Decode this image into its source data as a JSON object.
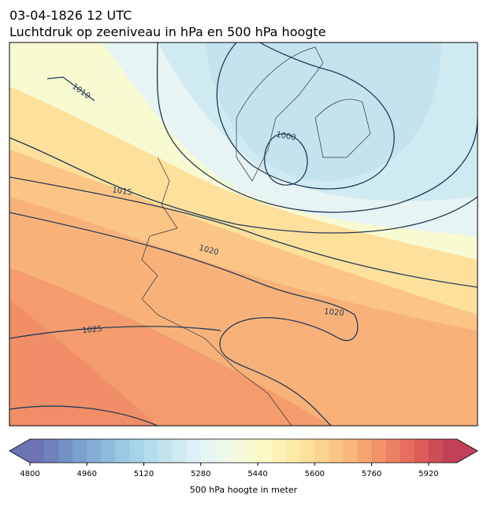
{
  "title": "03-04-1826 12 UTC",
  "subtitle": "Luchtdruk op zeeniveau in hPa en 500 hPa hoogte",
  "isobar_labels": [
    1010,
    1015,
    1020,
    1000,
    1020,
    1025
  ],
  "colorbar": {
    "label": "500 hPa hoogte in meter",
    "range": [
      4800,
      6000
    ],
    "ticks": [
      4800,
      4960,
      5120,
      5280,
      5440,
      5600,
      5760,
      5920
    ],
    "colors": [
      "#6c74b5",
      "#6f82bd",
      "#7491c6",
      "#7ba0cd",
      "#85aed4",
      "#8fbcdb",
      "#9ac8e1",
      "#a7d3e7",
      "#b5dced",
      "#c3e4ef",
      "#d0eaf2",
      "#dcf0f5",
      "#e6f4f3",
      "#eef7ec",
      "#f4f9e0",
      "#f8fad2",
      "#fdf9c4",
      "#fef2b6",
      "#feeaa8",
      "#fde09c",
      "#fcd390",
      "#fbc585",
      "#f9b67b",
      "#f6a572",
      "#f2936a",
      "#ec8062",
      "#e56e5c",
      "#db5c58",
      "#cf4d57",
      "#c14158"
    ]
  }
}
